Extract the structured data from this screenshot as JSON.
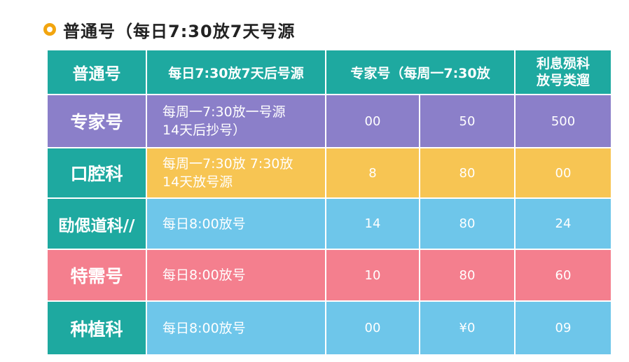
{
  "heading": "普通号（每日7:30放7天号源",
  "header": {
    "col1": "普通号",
    "col2": "每日7:30放7天后号源",
    "col3": "专家号（每周一7:30放",
    "col5_line1": "利息殒科",
    "col5_line2": "放号类遛"
  },
  "rows": [
    {
      "name": "专家号",
      "desc_line1": "每周一7:30放一号源",
      "desc_line2": "14天后抄号）",
      "v1": "00",
      "v2": "50",
      "v3": "500"
    },
    {
      "name": "口腔科",
      "desc_line1": "每周一7:30放 7:30放",
      "desc_line2": "14天放号源",
      "v1": "8",
      "v2": "80",
      "v3": "00"
    },
    {
      "name": "劻偲道科//",
      "desc_line1": "每日8:00放号",
      "desc_line2": "",
      "v1": "14",
      "v2": "80",
      "v3": "24"
    },
    {
      "name": "特需号",
      "desc_line1": "每日8:00放号",
      "desc_line2": "",
      "v1": "10",
      "v2": "80",
      "v3": "60"
    },
    {
      "name": "种植科",
      "desc_line1": "每日8:00放号",
      "desc_line2": "",
      "v1": "00",
      "v2": "¥0",
      "v3": "09"
    }
  ],
  "colors": {
    "teal": "#1ea9a0",
    "purple": "#8b7fc9",
    "yellow": "#f7c553",
    "blue": "#6ec6ea",
    "pink": "#f47f8e",
    "bullet": "#f2a50f"
  },
  "icons": {
    "bullet": "circle-bullet-icon"
  }
}
